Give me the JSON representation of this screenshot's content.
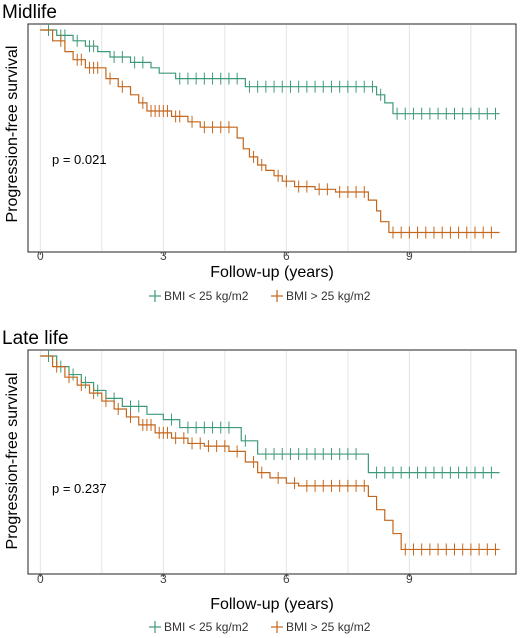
{
  "colors": {
    "low_bmi": "#3f9a78",
    "high_bmi": "#c4661b",
    "grid": "#e3e3e3",
    "frame": "#222222"
  },
  "chart_data": [
    {
      "type": "line",
      "title": "Midlife",
      "xlabel": "Follow-up (years)",
      "ylabel": "Progression-free survival",
      "xlim": [
        -0.3,
        11.6
      ],
      "ylim": [
        0.2,
        1.0
      ],
      "xticks": [
        0,
        3,
        6,
        9
      ],
      "annotation": "p = 0.021",
      "legend_position": "bottom",
      "series": [
        {
          "name": "BMI < 25 kg/m2",
          "x": [
            0,
            0.4,
            0.8,
            1.1,
            1.4,
            1.7,
            2.2,
            2.7,
            2.9,
            3.3,
            5.0,
            8.2,
            8.4,
            8.6,
            11.2
          ],
          "y": [
            1.0,
            0.98,
            0.96,
            0.94,
            0.92,
            0.9,
            0.88,
            0.86,
            0.84,
            0.82,
            0.79,
            0.76,
            0.73,
            0.69,
            0.69
          ],
          "censor_x": [
            0.2,
            0.5,
            0.6,
            0.9,
            1.2,
            1.3,
            1.8,
            2.0,
            2.3,
            2.5,
            3.4,
            3.6,
            3.8,
            4.0,
            4.2,
            4.4,
            4.6,
            4.8,
            5.1,
            5.3,
            5.5,
            5.7,
            5.9,
            6.1,
            6.3,
            6.5,
            6.7,
            6.9,
            7.1,
            7.3,
            7.5,
            7.7,
            7.9,
            8.1,
            8.3,
            8.7,
            8.9,
            9.1,
            9.3,
            9.5,
            9.7,
            9.9,
            10.1,
            10.3,
            10.5,
            10.7,
            10.9,
            11.1
          ]
        },
        {
          "name": "BMI > 25 kg/m2",
          "x": [
            0,
            0.3,
            0.6,
            0.8,
            1.1,
            1.6,
            1.9,
            2.2,
            2.4,
            2.6,
            3.2,
            3.6,
            3.9,
            4.8,
            4.95,
            5.1,
            5.3,
            5.5,
            5.7,
            5.9,
            6.2,
            6.7,
            7.2,
            8.0,
            8.2,
            8.3,
            8.5,
            11.2
          ],
          "y": [
            1.0,
            0.96,
            0.92,
            0.89,
            0.86,
            0.82,
            0.79,
            0.76,
            0.73,
            0.7,
            0.68,
            0.66,
            0.64,
            0.6,
            0.56,
            0.53,
            0.5,
            0.48,
            0.46,
            0.44,
            0.42,
            0.41,
            0.4,
            0.37,
            0.33,
            0.29,
            0.25,
            0.25
          ],
          "censor_x": [
            0.5,
            0.9,
            1.0,
            1.2,
            1.3,
            1.4,
            1.7,
            2.0,
            2.5,
            2.7,
            2.8,
            2.9,
            3.0,
            3.1,
            3.3,
            3.4,
            3.7,
            4.0,
            4.2,
            4.4,
            4.6,
            5.2,
            5.4,
            5.8,
            6.0,
            6.3,
            6.5,
            6.8,
            7.0,
            7.3,
            7.5,
            7.7,
            7.9,
            8.6,
            8.8,
            9.0,
            9.2,
            9.4,
            9.6,
            9.8,
            10.0,
            10.2,
            10.4,
            10.6,
            10.8,
            11.0
          ]
        }
      ]
    },
    {
      "type": "line",
      "title": "Late life",
      "xlabel": "Follow-up (years)",
      "ylabel": "Progression-free survival",
      "xlim": [
        -0.3,
        11.6
      ],
      "ylim": [
        0.2,
        1.0
      ],
      "xticks": [
        0,
        3,
        6,
        9
      ],
      "annotation": "p = 0.237",
      "legend_position": "bottom",
      "series": [
        {
          "name": "BMI < 25 kg/m2",
          "x": [
            0,
            0.4,
            0.7,
            1.0,
            1.3,
            1.6,
            2.0,
            2.6,
            3.0,
            3.4,
            4.9,
            5.3,
            8.0,
            11.2
          ],
          "y": [
            1.0,
            0.96,
            0.93,
            0.9,
            0.87,
            0.84,
            0.81,
            0.78,
            0.76,
            0.73,
            0.68,
            0.63,
            0.56,
            0.56
          ],
          "censor_x": [
            0.2,
            0.5,
            0.8,
            1.1,
            1.4,
            1.8,
            2.2,
            2.4,
            3.2,
            3.6,
            3.8,
            4.0,
            4.2,
            4.4,
            4.6,
            5.0,
            5.5,
            5.7,
            5.9,
            6.1,
            6.3,
            6.5,
            6.7,
            6.9,
            7.1,
            7.3,
            7.5,
            7.7,
            8.2,
            8.4,
            8.6,
            8.8,
            9.0,
            9.2,
            9.4,
            9.6,
            9.8,
            10.0,
            10.2,
            10.4,
            10.6,
            10.8,
            11.0
          ]
        },
        {
          "name": "BMI > 25 kg/m2",
          "x": [
            0,
            0.3,
            0.6,
            0.9,
            1.2,
            1.5,
            1.8,
            2.1,
            2.4,
            2.8,
            3.2,
            3.6,
            4.0,
            4.6,
            5.0,
            5.3,
            5.6,
            6.0,
            6.3,
            8.0,
            8.2,
            8.4,
            8.6,
            8.8,
            11.2
          ],
          "y": [
            1.0,
            0.96,
            0.92,
            0.89,
            0.86,
            0.83,
            0.8,
            0.77,
            0.74,
            0.71,
            0.69,
            0.67,
            0.66,
            0.64,
            0.6,
            0.56,
            0.54,
            0.52,
            0.51,
            0.47,
            0.42,
            0.38,
            0.33,
            0.27,
            0.27
          ],
          "censor_x": [
            0.4,
            0.7,
            1.0,
            1.3,
            1.6,
            1.9,
            2.2,
            2.5,
            2.6,
            2.7,
            2.9,
            3.0,
            3.1,
            3.3,
            3.5,
            3.7,
            3.9,
            4.1,
            4.3,
            4.5,
            4.8,
            5.2,
            5.4,
            5.8,
            6.2,
            6.5,
            6.7,
            6.9,
            7.1,
            7.3,
            7.5,
            7.7,
            7.9,
            8.9,
            9.1,
            9.3,
            9.5,
            9.7,
            9.9,
            10.1,
            10.3,
            10.5,
            10.7,
            10.9,
            11.1
          ]
        }
      ]
    }
  ]
}
